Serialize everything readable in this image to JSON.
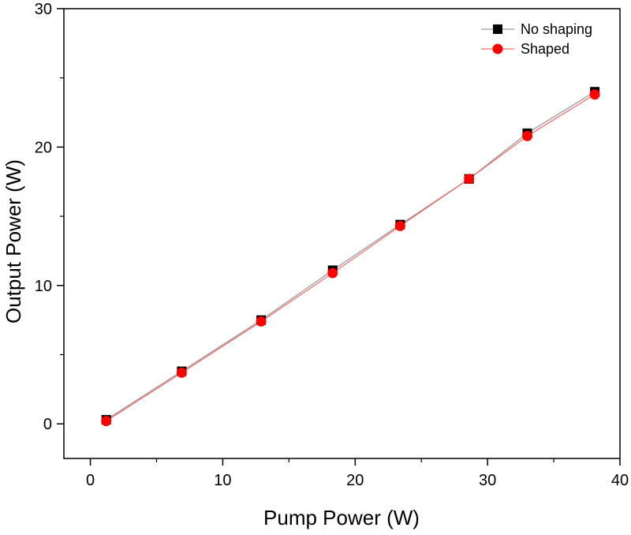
{
  "chart_data": {
    "type": "line",
    "title": "",
    "xlabel": "Pump Power (W)",
    "ylabel": "Output Power (W)",
    "xlim": [
      -2,
      40
    ],
    "ylim": [
      -2.5,
      30
    ],
    "xticks": [
      0,
      10,
      20,
      30,
      40
    ],
    "yticks": [
      0,
      10,
      20,
      30
    ],
    "xtick_labels": [
      "0",
      "10",
      "20",
      "30",
      "40"
    ],
    "ytick_labels": [
      "0",
      "10",
      "20",
      "30"
    ],
    "grid": false,
    "legend_position": "top-right",
    "series": [
      {
        "name": "No shaping",
        "marker": "square",
        "marker_color": "#000000",
        "line_color": "#9a9a9a",
        "x": [
          1.2,
          6.9,
          12.9,
          18.3,
          23.4,
          28.6,
          33.0,
          38.1
        ],
        "y": [
          0.3,
          3.8,
          7.5,
          11.1,
          14.4,
          17.7,
          21.0,
          24.0
        ]
      },
      {
        "name": "Shaped",
        "marker": "circle",
        "marker_color": "#ff0000",
        "line_color": "#f07070",
        "x": [
          1.2,
          6.9,
          12.9,
          18.3,
          23.4,
          28.6,
          33.0,
          38.1
        ],
        "y": [
          0.2,
          3.7,
          7.4,
          10.9,
          14.3,
          17.7,
          20.8,
          23.8
        ]
      }
    ]
  }
}
